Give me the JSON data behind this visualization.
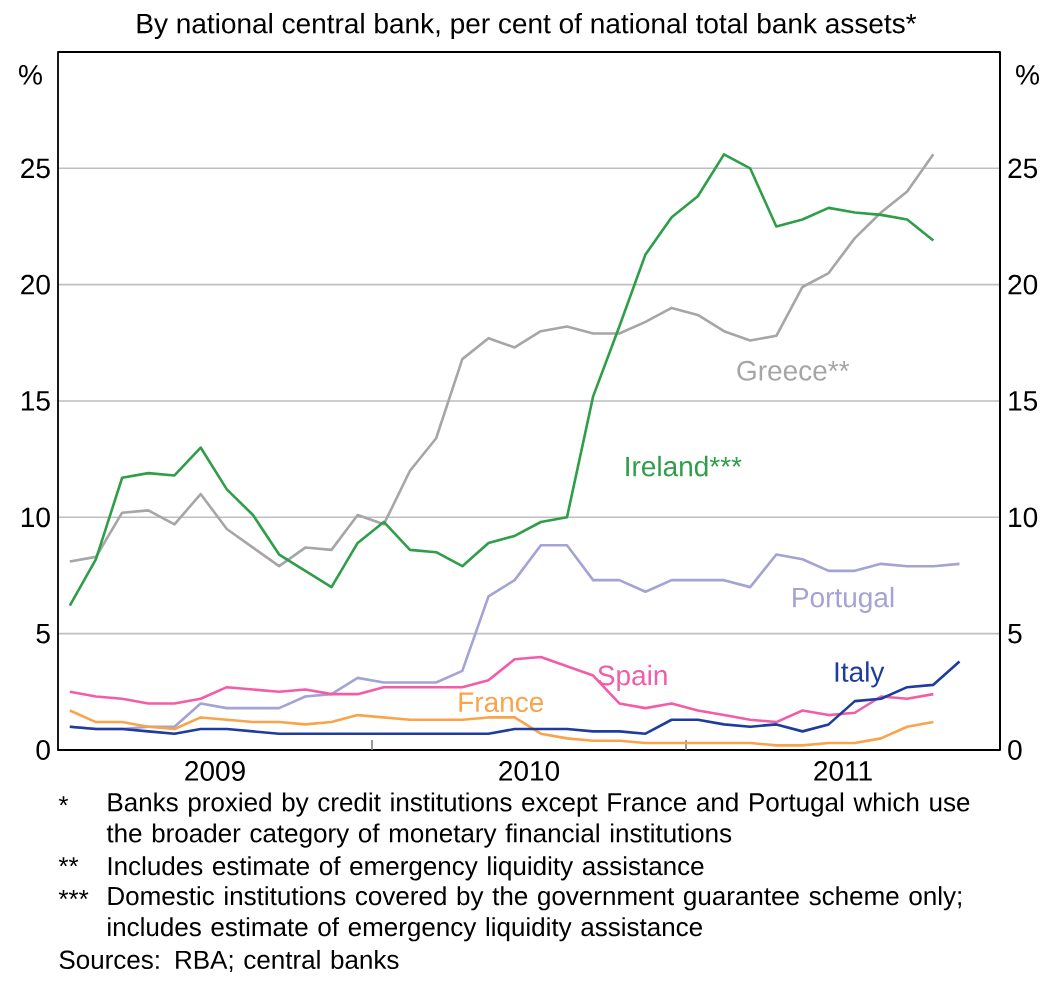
{
  "chart_data": {
    "type": "line",
    "subtitle": "By national central bank, per cent of national total bank assets*",
    "ylabel": "%",
    "y2label": "%",
    "x": [
      "2009-01-15",
      "2009-02-15",
      "2009-03-15",
      "2009-04-15",
      "2009-05-15",
      "2009-06-15",
      "2009-07-15",
      "2009-08-15",
      "2009-09-15",
      "2009-10-15",
      "2009-11-15",
      "2009-12-15",
      "2010-01-15",
      "2010-02-15",
      "2010-03-15",
      "2010-04-15",
      "2010-05-15",
      "2010-06-15",
      "2010-07-15",
      "2010-08-15",
      "2010-09-15",
      "2010-10-15",
      "2010-11-15",
      "2010-12-15",
      "2011-01-15",
      "2011-02-15",
      "2011-03-15",
      "2011-04-15",
      "2011-05-15",
      "2011-06-15",
      "2011-07-15",
      "2011-08-15",
      "2011-09-15",
      "2011-10-15",
      "2011-11-15"
    ],
    "series": [
      {
        "name": "Greece**",
        "color": "#a6a6a6",
        "values": [
          8.1,
          8.3,
          10.2,
          10.3,
          9.7,
          11.0,
          9.5,
          8.7,
          7.9,
          8.7,
          8.6,
          10.1,
          9.7,
          12.0,
          13.4,
          16.8,
          17.7,
          17.3,
          18.0,
          18.2,
          17.9,
          17.9,
          18.4,
          19.0,
          18.7,
          18.0,
          17.6,
          17.8,
          19.9,
          20.5,
          22.0,
          23.1,
          24.0,
          25.6,
          null
        ]
      },
      {
        "name": "Ireland***",
        "color": "#2e9e48",
        "values": [
          6.2,
          8.2,
          11.7,
          11.9,
          11.8,
          13.0,
          11.2,
          10.1,
          8.4,
          7.7,
          7.0,
          8.9,
          9.8,
          8.6,
          8.5,
          7.9,
          8.9,
          9.2,
          9.8,
          10.0,
          15.2,
          18.2,
          21.3,
          22.9,
          23.8,
          25.6,
          25.0,
          22.5,
          22.8,
          23.3,
          23.1,
          23.0,
          22.8,
          21.9,
          null
        ]
      },
      {
        "name": "Portugal",
        "color": "#a3a3d6",
        "values": [
          1.0,
          0.9,
          0.9,
          1.0,
          1.0,
          2.0,
          1.8,
          1.8,
          1.8,
          2.3,
          2.4,
          3.1,
          2.9,
          2.9,
          2.9,
          3.4,
          6.6,
          7.3,
          8.8,
          8.8,
          7.3,
          7.3,
          6.8,
          7.3,
          7.3,
          7.3,
          7.0,
          8.4,
          8.2,
          7.7,
          7.7,
          8.0,
          7.9,
          7.9,
          8.0
        ]
      },
      {
        "name": "Spain",
        "color": "#f25ca8",
        "values": [
          2.5,
          2.3,
          2.2,
          2.0,
          2.0,
          2.2,
          2.7,
          2.6,
          2.5,
          2.6,
          2.4,
          2.4,
          2.7,
          2.7,
          2.7,
          2.7,
          3.0,
          3.9,
          4.0,
          3.6,
          3.2,
          2.0,
          1.8,
          2.0,
          1.7,
          1.5,
          1.3,
          1.2,
          1.7,
          1.5,
          1.6,
          2.3,
          2.2,
          2.4,
          null
        ]
      },
      {
        "name": "France",
        "color": "#f9a44a",
        "values": [
          1.7,
          1.2,
          1.2,
          1.0,
          0.9,
          1.4,
          1.3,
          1.2,
          1.2,
          1.1,
          1.2,
          1.5,
          1.4,
          1.3,
          1.3,
          1.3,
          1.4,
          1.4,
          0.7,
          0.5,
          0.4,
          0.4,
          0.3,
          0.3,
          0.3,
          0.3,
          0.3,
          0.2,
          0.2,
          0.3,
          0.3,
          0.5,
          1.0,
          1.2,
          null
        ]
      },
      {
        "name": "Italy",
        "color": "#1f3c9c",
        "values": [
          1.0,
          0.9,
          0.9,
          0.8,
          0.7,
          0.9,
          0.9,
          0.8,
          0.7,
          0.7,
          0.7,
          0.7,
          0.7,
          0.7,
          0.7,
          0.7,
          0.7,
          0.9,
          0.9,
          0.9,
          0.8,
          0.8,
          0.7,
          1.3,
          1.3,
          1.1,
          1.0,
          1.1,
          0.8,
          1.1,
          2.1,
          2.2,
          2.7,
          2.8,
          3.8
        ]
      }
    ],
    "xlim": [
      "2009-01-01",
      "2012-01-01"
    ],
    "xticks": [
      {
        "value": "2009-07-01",
        "label": "2009"
      },
      {
        "value": "2010-01-01",
        "label": null
      },
      {
        "value": "2010-07-01",
        "label": "2010"
      },
      {
        "value": "2011-01-01",
        "label": null
      },
      {
        "value": "2011-07-01",
        "label": "2011"
      }
    ],
    "ylim": [
      0,
      30
    ],
    "yticks": [
      0,
      5,
      10,
      15,
      20,
      25
    ],
    "y2lim": [
      0,
      30
    ],
    "y2ticks": [
      0,
      5,
      10,
      15,
      20,
      25
    ],
    "grid": "y",
    "annotations": [
      "*",
      "Banks proxied by credit institutions except France and Portugal which use the broader category of monetary financial institutions",
      "**",
      "Includes estimate of emergency liquidity assistance",
      "***",
      "Domestic institutions covered by the government guarantee scheme only; includes estimate of emergency liquidity assistance",
      "Sources: RBA; central banks"
    ]
  }
}
